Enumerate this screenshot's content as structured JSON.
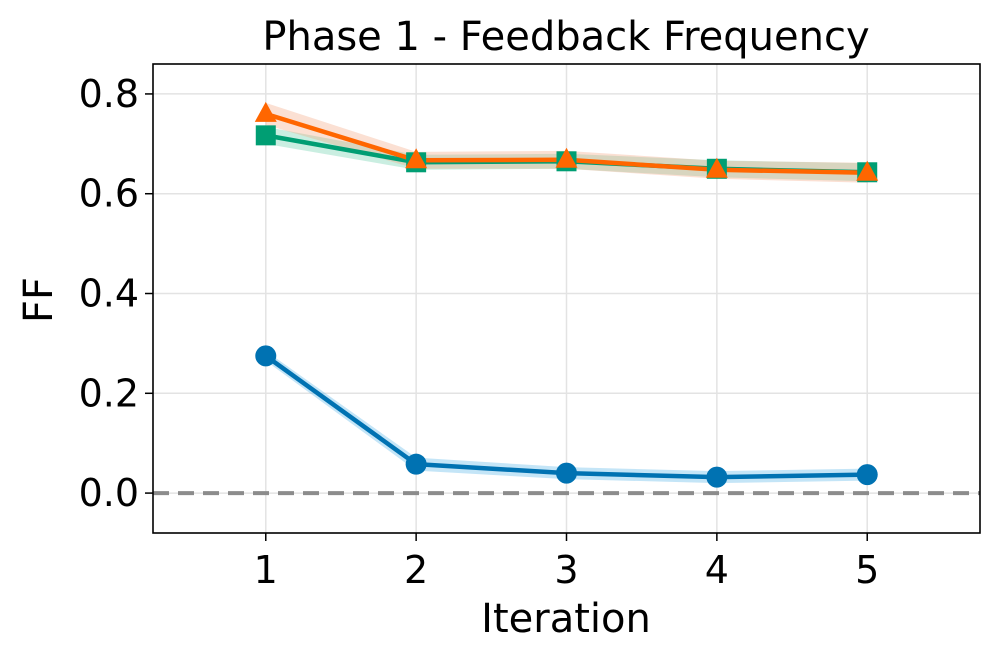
{
  "chart_data": {
    "type": "line",
    "title": "Phase 1 - Feedback Frequency",
    "xlabel": "Iteration",
    "ylabel": "FF",
    "x": [
      1,
      2,
      3,
      4,
      5
    ],
    "xlim": [
      0.25,
      5.75
    ],
    "ylim": [
      -0.08,
      0.86
    ],
    "xticks": [
      1,
      2,
      3,
      4,
      5
    ],
    "yticks": [
      0.0,
      0.2,
      0.4,
      0.6,
      0.8
    ],
    "ytick_labels": [
      "0.0",
      "0.2",
      "0.4",
      "0.6",
      "0.8"
    ],
    "grid": true,
    "reference_line": {
      "y": 0.0,
      "style": "dashed",
      "color": "#8c8c8c"
    },
    "series": [
      {
        "values": [
          0.275,
          0.058,
          0.04,
          0.032,
          0.037
        ],
        "band_lower": [
          0.265,
          0.045,
          0.028,
          0.02,
          0.025
        ],
        "band_upper": [
          0.285,
          0.071,
          0.052,
          0.044,
          0.049
        ],
        "color": "#0072B2",
        "band_color": "#56B4E9",
        "marker": "circle"
      },
      {
        "values": [
          0.717,
          0.663,
          0.665,
          0.65,
          0.643
        ],
        "band_lower": [
          0.7,
          0.648,
          0.65,
          0.633,
          0.625
        ],
        "band_upper": [
          0.734,
          0.678,
          0.68,
          0.667,
          0.661
        ],
        "color": "#009E73",
        "band_color": "#66CDAA",
        "marker": "square"
      },
      {
        "values": [
          0.76,
          0.667,
          0.668,
          0.648,
          0.642
        ],
        "band_lower": [
          0.738,
          0.65,
          0.65,
          0.63,
          0.622
        ],
        "band_upper": [
          0.782,
          0.684,
          0.686,
          0.666,
          0.662
        ],
        "color": "#FF6600",
        "band_color": "#F4A582",
        "marker": "triangle"
      }
    ]
  }
}
